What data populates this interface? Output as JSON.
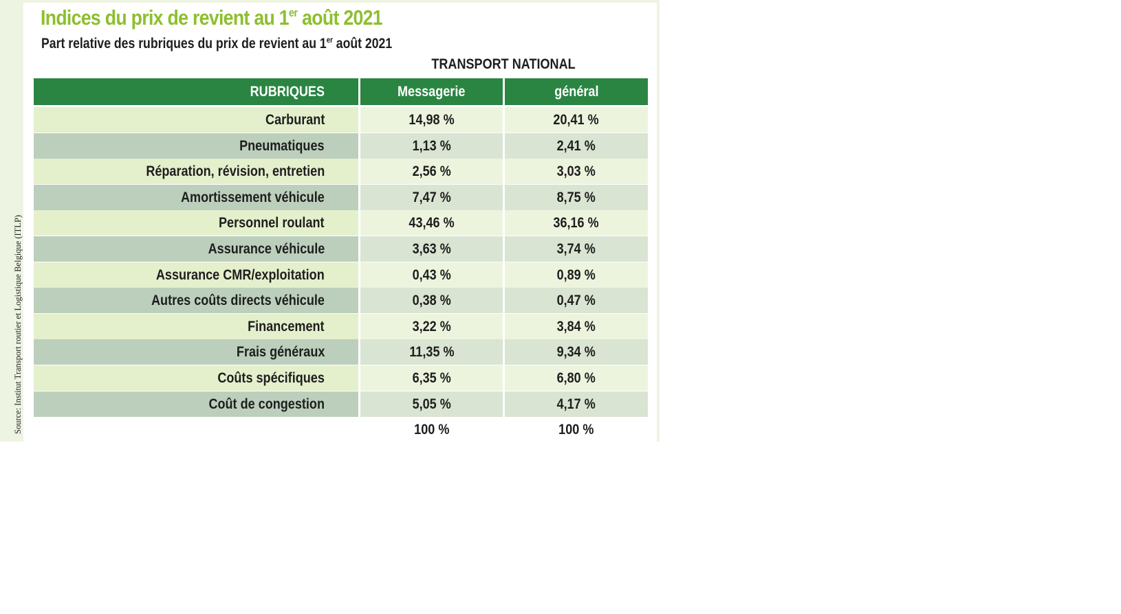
{
  "source": "Source: Institut Transport routier et Logistique Belgique (ITLP)",
  "title": {
    "main": "Indices du prix de revient au 1",
    "sup": "er",
    "end": " août 2021"
  },
  "subtitle": {
    "main": "Part relative des rubriques du prix de revient au 1",
    "sup": "er",
    "end": " août 2021"
  },
  "section_label": "TRANSPORT NATIONAL",
  "columns": {
    "label": "RUBRIQUES",
    "messagerie": "Messagerie",
    "general": "général"
  },
  "rows": [
    {
      "label": "Carburant",
      "messagerie": "14,98 %",
      "general": "20,41 %"
    },
    {
      "label": "Pneumatiques",
      "messagerie": "1,13 %",
      "general": "2,41 %"
    },
    {
      "label": "Réparation, révision, entretien",
      "messagerie": "2,56 %",
      "general": "3,03 %"
    },
    {
      "label": "Amortissement véhicule",
      "messagerie": "7,47 %",
      "general": "8,75 %"
    },
    {
      "label": "Personnel roulant",
      "messagerie": "43,46 %",
      "general": "36,16 %"
    },
    {
      "label": "Assurance véhicule",
      "messagerie": "3,63 %",
      "general": "3,74 %"
    },
    {
      "label": "Assurance CMR/exploitation",
      "messagerie": "0,43 %",
      "general": "0,89 %"
    },
    {
      "label": "Autres coûts directs véhicule",
      "messagerie": "0,38 %",
      "general": "0,47 %"
    },
    {
      "label": "Financement",
      "messagerie": "3,22 %",
      "general": "3,84 %"
    },
    {
      "label": "Frais généraux",
      "messagerie": "11,35 %",
      "general": "9,34 %"
    },
    {
      "label": "Coûts spécifiques",
      "messagerie": "6,35 %",
      "general": "6,80 %"
    },
    {
      "label": "Coût de congestion",
      "messagerie": "5,05 %",
      "general": "4,17 %"
    }
  ],
  "totals": {
    "messagerie": "100 %",
    "general": "100 %"
  },
  "colors": {
    "title_green": "#8dbf2e",
    "header_green": "#2a8542",
    "row_light": "#e4efcc",
    "row_dark": "#bccfbc",
    "strip": "#eef4e2"
  }
}
